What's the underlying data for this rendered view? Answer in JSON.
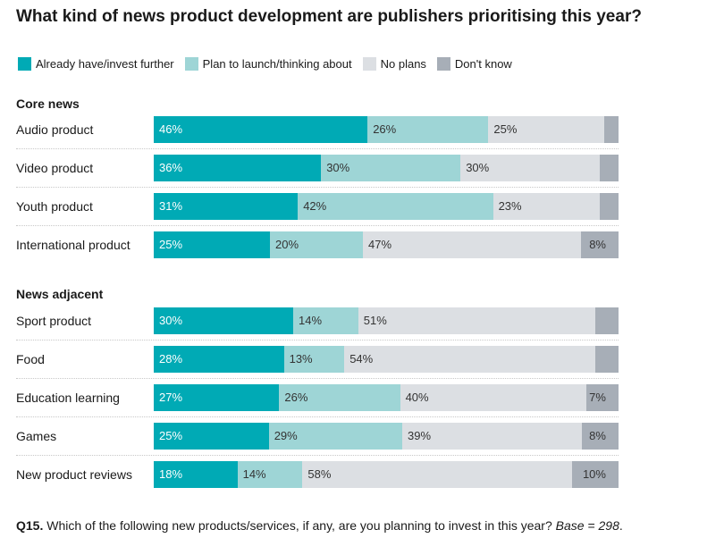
{
  "chart_data": {
    "type": "bar",
    "orientation": "horizontal",
    "stacked": true,
    "title": "What kind of news product development are publishers prioritising this year?",
    "legend_position": "top-left",
    "series": [
      {
        "name": "Already have/invest further",
        "color": "#00aab5"
      },
      {
        "name": "Plan to launch/thinking about",
        "color": "#9ed5d6"
      },
      {
        "name": "No plans",
        "color": "#dcdfe3"
      },
      {
        "name": "Don't know",
        "color": "#a7aeb7"
      }
    ],
    "groups": [
      {
        "name": "Core news",
        "categories": [
          {
            "label": "Audio product",
            "values": [
              46,
              26,
              25,
              3
            ],
            "labels": [
              "46%",
              "26%",
              "25%",
              ""
            ]
          },
          {
            "label": "Video product",
            "values": [
              36,
              30,
              30,
              4
            ],
            "labels": [
              "36%",
              "30%",
              "30%",
              ""
            ]
          },
          {
            "label": "Youth product",
            "values": [
              31,
              42,
              23,
              4
            ],
            "labels": [
              "31%",
              "42%",
              "23%",
              ""
            ]
          },
          {
            "label": "International product",
            "values": [
              25,
              20,
              47,
              8
            ],
            "labels": [
              "25%",
              "20%",
              "47%",
              "8%"
            ]
          }
        ]
      },
      {
        "name": "News adjacent",
        "categories": [
          {
            "label": "Sport product",
            "values": [
              30,
              14,
              51,
              5
            ],
            "labels": [
              "30%",
              "14%",
              "51%",
              ""
            ]
          },
          {
            "label": "Food",
            "values": [
              28,
              13,
              54,
              5
            ],
            "labels": [
              "28%",
              "13%",
              "54%",
              ""
            ]
          },
          {
            "label": "Education learning",
            "values": [
              27,
              26,
              40,
              7
            ],
            "labels": [
              "27%",
              "26%",
              "40%",
              "7%"
            ]
          },
          {
            "label": "Games",
            "values": [
              25,
              29,
              39,
              8
            ],
            "labels": [
              "25%",
              "29%",
              "39%",
              "8%"
            ]
          },
          {
            "label": "New product reviews",
            "values": [
              18,
              14,
              58,
              10
            ],
            "labels": [
              "18%",
              "14%",
              "58%",
              "10%"
            ]
          }
        ]
      }
    ],
    "xlim": [
      0,
      100
    ]
  },
  "footnote": {
    "question": "Q15.",
    "text": "Which of the following new products/services, if any, are you planning to invest in this year?",
    "base": "Base = 298",
    "end": "."
  }
}
